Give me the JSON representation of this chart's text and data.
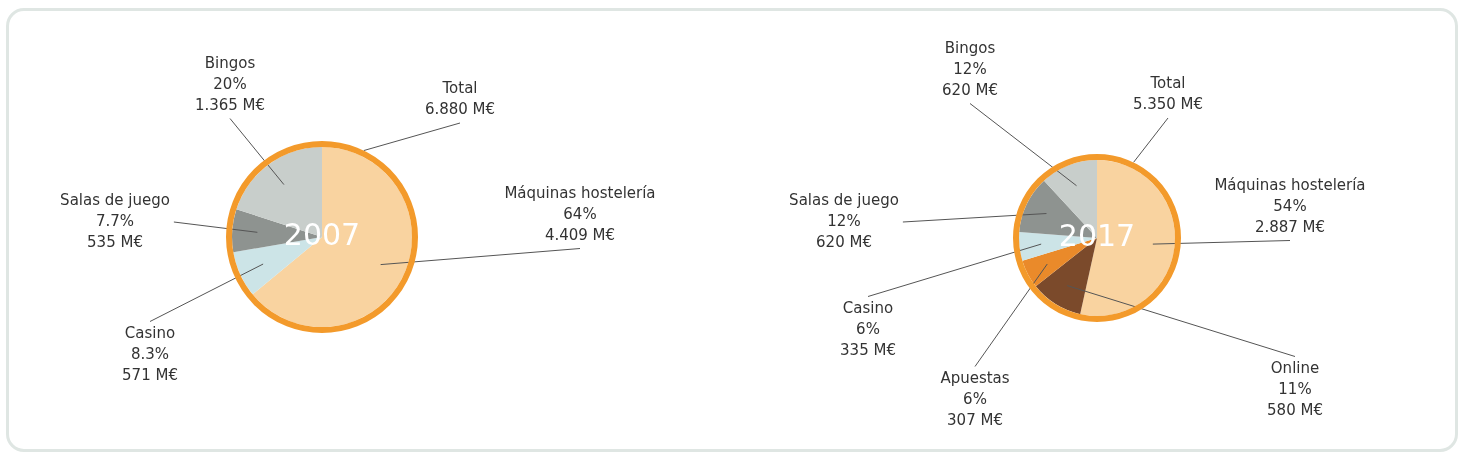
{
  "chart_data": [
    {
      "type": "pie",
      "title": "2007",
      "categories": [
        "Máquinas hostelería",
        "Casino",
        "Salas de juego",
        "Bingos"
      ],
      "values": [
        64,
        8.3,
        7.7,
        20
      ],
      "colors": [
        "#f9d3a0",
        "#cce4e7",
        "#8e9390",
        "#c8cecb"
      ],
      "value_labels": [
        "64%\n4.409 M€",
        "8.3%\n571 M€",
        "7.7%\n535 M€",
        "20%\n1.365 M€"
      ],
      "annotations": [
        "Total\n6.880 M€"
      ]
    },
    {
      "type": "pie",
      "title": "2017",
      "categories": [
        "Máquinas hostelería",
        "Online",
        "Apuestas",
        "Casino",
        "Salas de juego",
        "Bingos"
      ],
      "values": [
        54,
        11,
        6,
        6,
        12,
        12
      ],
      "colors": [
        "#f9d3a0",
        "#7b4a2b",
        "#ea8a2a",
        "#cce4e7",
        "#8e9390",
        "#c8cecb"
      ],
      "value_labels": [
        "54%\n2.887 M€",
        "11%\n580 M€",
        "6%\n307 M€",
        "6%\n335 M€",
        "12%\n620 M€",
        "12%\n620 M€"
      ],
      "annotations": [
        "Total\n5.350 M€"
      ]
    }
  ]
}
